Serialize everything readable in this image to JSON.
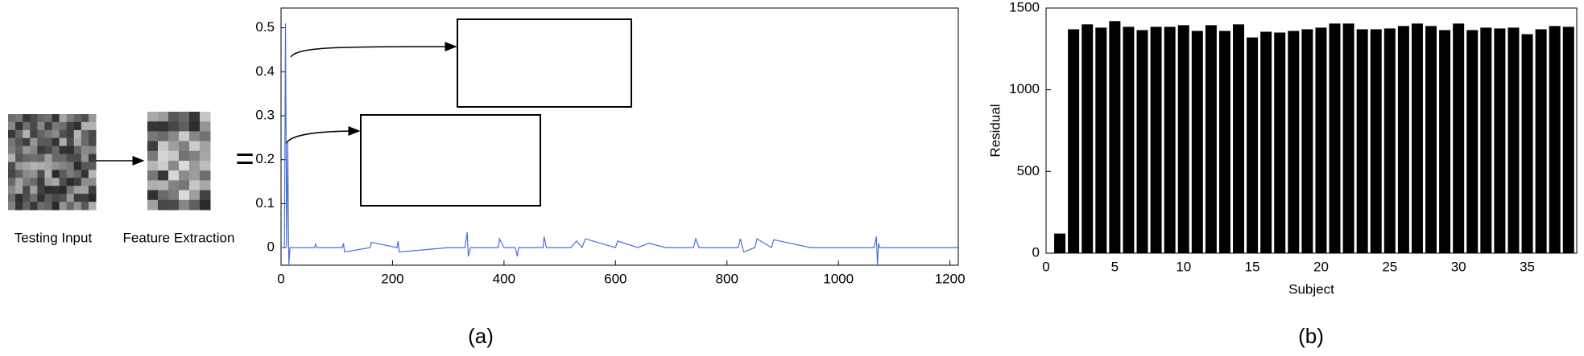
{
  "labels": {
    "input": "Testing Input",
    "feature": "Feature Extraction",
    "equals": "=",
    "panel_a": "(a)",
    "panel_b": "(b)"
  },
  "chart_data": [
    {
      "type": "line",
      "x": [
        0,
        6,
        8,
        10,
        12,
        14,
        16,
        60,
        62,
        64,
        110,
        112,
        114,
        160,
        162,
        208,
        210,
        212,
        300,
        330,
        334,
        336,
        340,
        390,
        392,
        400,
        420,
        424,
        426,
        470,
        472,
        476,
        520,
        530,
        540,
        546,
        600,
        604,
        640,
        660,
        690,
        740,
        744,
        750,
        820,
        824,
        830,
        850,
        854,
        880,
        884,
        950,
        1000,
        1064,
        1068,
        1070,
        1072,
        1074,
        1140,
        1215
      ],
      "values": [
        0,
        0,
        0.51,
        0,
        0.24,
        -0.04,
        0,
        0,
        0.008,
        0,
        0,
        0.01,
        -0.01,
        0,
        0.012,
        0,
        0.015,
        -0.01,
        0,
        0,
        0.035,
        -0.02,
        0,
        0,
        0.02,
        0,
        0,
        -0.02,
        0,
        0,
        0.025,
        0,
        0,
        0.015,
        0,
        0.02,
        0,
        0.015,
        0,
        0.01,
        0,
        0,
        0.02,
        0,
        0,
        0.02,
        -0.01,
        0,
        0.02,
        0,
        0.018,
        0,
        0,
        0,
        0.025,
        -0.04,
        0.01,
        0,
        0,
        0
      ],
      "color": "#4a6fdc",
      "xlim": [
        0,
        1215
      ],
      "xticks": [
        0,
        200,
        400,
        600,
        800,
        1000,
        1200
      ],
      "ylim": [
        -0.04,
        0.545
      ],
      "yticks": [
        0,
        0.1,
        0.2,
        0.3,
        0.4,
        0.5
      ],
      "grid": false
    },
    {
      "type": "bar",
      "xlabel": "Subject",
      "ylabel": "Residual",
      "x": [
        1,
        2,
        3,
        4,
        5,
        6,
        7,
        8,
        9,
        10,
        11,
        12,
        13,
        14,
        15,
        16,
        17,
        18,
        19,
        20,
        21,
        22,
        23,
        24,
        25,
        26,
        27,
        28,
        29,
        30,
        31,
        32,
        33,
        34,
        35,
        36,
        37,
        38
      ],
      "values": [
        120,
        1370,
        1400,
        1380,
        1420,
        1385,
        1365,
        1385,
        1385,
        1395,
        1360,
        1395,
        1360,
        1400,
        1320,
        1355,
        1350,
        1360,
        1370,
        1380,
        1405,
        1405,
        1370,
        1370,
        1375,
        1390,
        1405,
        1390,
        1365,
        1405,
        1365,
        1380,
        1375,
        1380,
        1340,
        1370,
        1390,
        1385
      ],
      "color": "#000000",
      "xlim": [
        0,
        38.6
      ],
      "xticks": [
        0,
        5,
        10,
        15,
        20,
        25,
        30,
        35
      ],
      "ylim": [
        0,
        1500
      ],
      "yticks": [
        0,
        500,
        1000,
        1500
      ],
      "grid": false
    }
  ]
}
